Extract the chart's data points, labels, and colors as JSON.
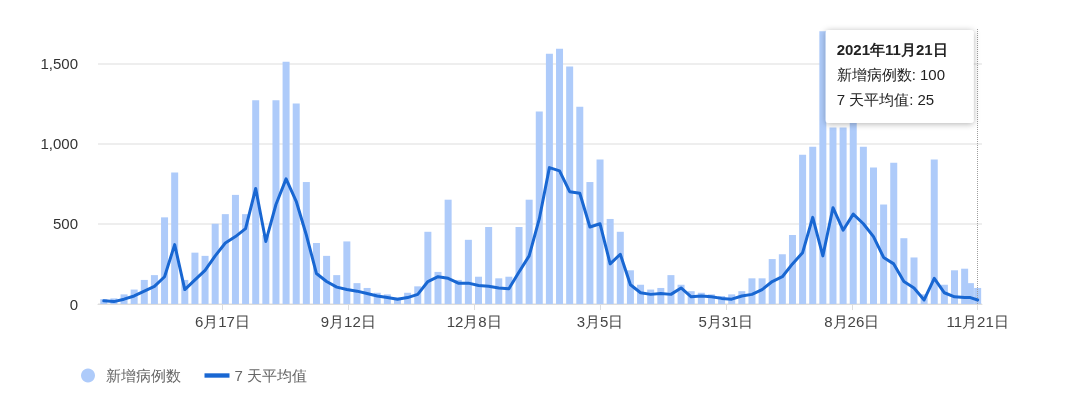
{
  "chart_data": {
    "type": "bar",
    "x": [
      "2020-03-27",
      "2020-04-03",
      "2020-04-10",
      "2020-04-17",
      "2020-04-24",
      "2020-05-01",
      "2020-05-08",
      "2020-05-15",
      "2020-05-22",
      "2020-05-29",
      "2020-06-05",
      "2020-06-12",
      "2020-06-19",
      "2020-06-26",
      "2020-07-03",
      "2020-07-10",
      "2020-07-17",
      "2020-07-24",
      "2020-07-31",
      "2020-08-07",
      "2020-08-14",
      "2020-08-21",
      "2020-08-28",
      "2020-09-04",
      "2020-09-11",
      "2020-09-18",
      "2020-09-25",
      "2020-10-02",
      "2020-10-09",
      "2020-10-16",
      "2020-10-23",
      "2020-10-30",
      "2020-11-06",
      "2020-11-13",
      "2020-11-20",
      "2020-11-27",
      "2020-12-04",
      "2020-12-11",
      "2020-12-18",
      "2020-12-25",
      "2021-01-01",
      "2021-01-08",
      "2021-01-15",
      "2021-01-22",
      "2021-01-29",
      "2021-02-05",
      "2021-02-12",
      "2021-02-19",
      "2021-02-26",
      "2021-03-05",
      "2021-03-12",
      "2021-03-19",
      "2021-03-26",
      "2021-04-02",
      "2021-04-09",
      "2021-04-16",
      "2021-04-23",
      "2021-04-30",
      "2021-05-07",
      "2021-05-14",
      "2021-05-21",
      "2021-05-28",
      "2021-06-04",
      "2021-06-11",
      "2021-06-18",
      "2021-06-25",
      "2021-07-02",
      "2021-07-09",
      "2021-07-16",
      "2021-07-23",
      "2021-07-30",
      "2021-08-06",
      "2021-08-13",
      "2021-08-20",
      "2021-08-27",
      "2021-09-03",
      "2021-09-10",
      "2021-09-17",
      "2021-09-24",
      "2021-10-01",
      "2021-10-08",
      "2021-10-15",
      "2021-10-22",
      "2021-10-29",
      "2021-11-05",
      "2021-11-12",
      "2021-11-16",
      "2021-11-21"
    ],
    "series": [
      {
        "name": "新增病例数",
        "color": "#aecbfa",
        "values": [
          30,
          35,
          60,
          90,
          150,
          180,
          540,
          820,
          150,
          320,
          300,
          500,
          560,
          680,
          560,
          1270,
          430,
          1270,
          1510,
          1250,
          760,
          380,
          300,
          180,
          390,
          130,
          100,
          70,
          60,
          40,
          70,
          110,
          450,
          200,
          650,
          150,
          400,
          170,
          480,
          160,
          170,
          480,
          650,
          1200,
          1560,
          1590,
          1480,
          1230,
          760,
          900,
          530,
          450,
          210,
          120,
          90,
          100,
          180,
          120,
          80,
          70,
          60,
          50,
          60,
          80,
          160,
          160,
          280,
          310,
          430,
          930,
          980,
          1700,
          1100,
          1100,
          1130,
          980,
          850,
          620,
          880,
          410,
          290,
          60,
          900,
          120,
          210,
          220,
          130,
          100
        ]
      },
      {
        "name": "7 天平均值",
        "type": "line",
        "color": "#1967d2",
        "values": [
          20,
          15,
          30,
          50,
          80,
          110,
          170,
          370,
          90,
          150,
          210,
          300,
          380,
          420,
          470,
          720,
          390,
          620,
          780,
          640,
          430,
          190,
          140,
          105,
          90,
          80,
          65,
          50,
          40,
          30,
          40,
          60,
          140,
          170,
          160,
          130,
          130,
          115,
          110,
          100,
          95,
          200,
          300,
          530,
          850,
          830,
          700,
          690,
          480,
          500,
          250,
          310,
          120,
          70,
          60,
          65,
          60,
          100,
          45,
          50,
          45,
          35,
          30,
          50,
          60,
          90,
          140,
          170,
          250,
          320,
          540,
          300,
          600,
          460,
          560,
          500,
          420,
          290,
          250,
          140,
          100,
          25,
          160,
          70,
          45,
          40,
          40,
          25
        ]
      }
    ],
    "xlim": [
      "2020-03-23",
      "2021-11-24"
    ],
    "xticks": [
      {
        "value": "2020-06-17",
        "label": "6月17日"
      },
      {
        "value": "2020-09-12",
        "label": "9月12日"
      },
      {
        "value": "2020-12-08",
        "label": "12月8日"
      },
      {
        "value": "2021-03-05",
        "label": "3月5日"
      },
      {
        "value": "2021-05-31",
        "label": "5月31日"
      },
      {
        "value": "2021-08-26",
        "label": "8月26日"
      },
      {
        "value": "2021-11-21",
        "label": "11月21日"
      }
    ],
    "ylim": [
      0,
      1720
    ],
    "yticks": [
      0,
      500,
      {
        "value": 1000,
        "label": "1,000"
      },
      {
        "value": 1500,
        "label": "1,500"
      }
    ],
    "grid": "y",
    "legend": "bottom left",
    "line_style": "solid",
    "marker": "none",
    "ref_lines": [
      {
        "axis": "x",
        "value": "2021-11-21",
        "color": "#9e9e9e",
        "line_style": "dotted"
      }
    ],
    "annotations": [
      "2021年11月21日",
      "新增病例数: 100",
      "7 天平均值: 25"
    ]
  }
}
